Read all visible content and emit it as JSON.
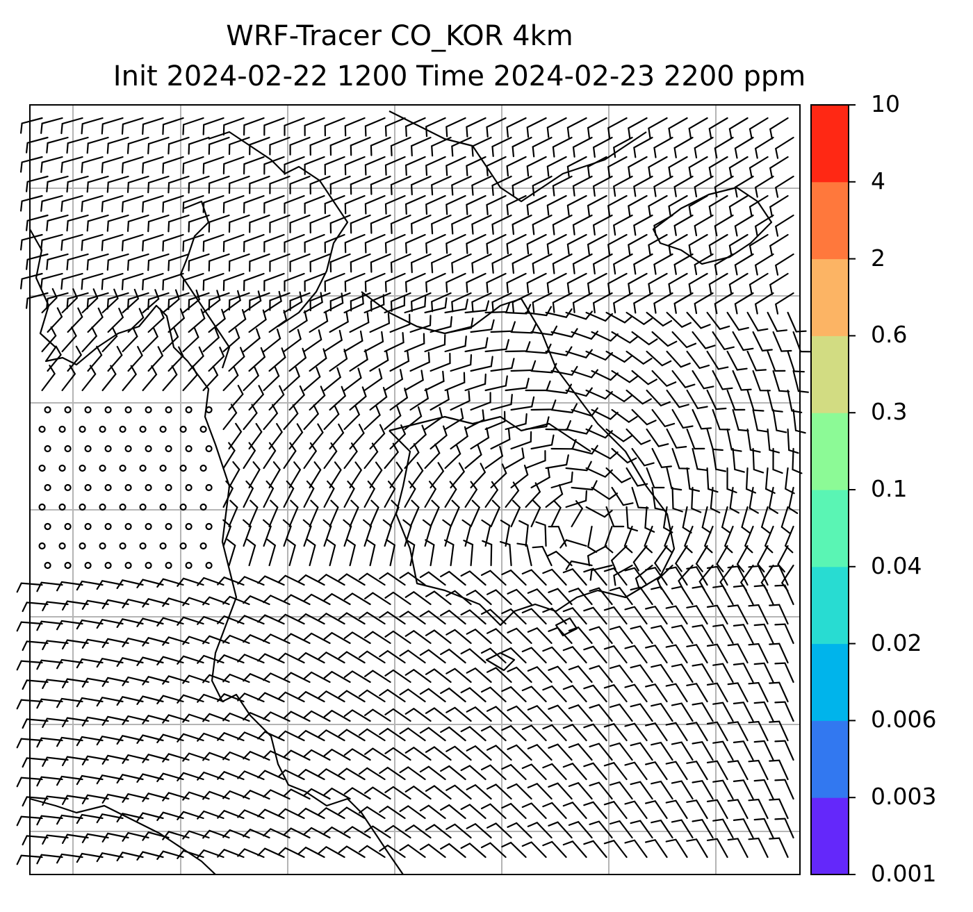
{
  "title_line1": "WRF-Tracer CO_KOR 4km",
  "title_line2": "Init 2024-02-22 1200 Time 2024-02-23 2200 ppm",
  "colorbar": {
    "levels": [
      "0.001",
      "0.003",
      "0.006",
      "0.02",
      "0.04",
      "0.1",
      "0.3",
      "0.6",
      "2",
      "4",
      "10"
    ],
    "colors": [
      "#6428fa",
      "#3278f0",
      "#00b4eb",
      "#28dcd2",
      "#5af5b4",
      "#8cfa96",
      "#d2dc82",
      "#fcb464",
      "#ff783c",
      "#ff2814"
    ]
  },
  "map": {
    "gridline_color": "#b4b4b4",
    "barb_color": "#000000",
    "coastline_color": "#000000",
    "concentration_field": "none"
  }
}
